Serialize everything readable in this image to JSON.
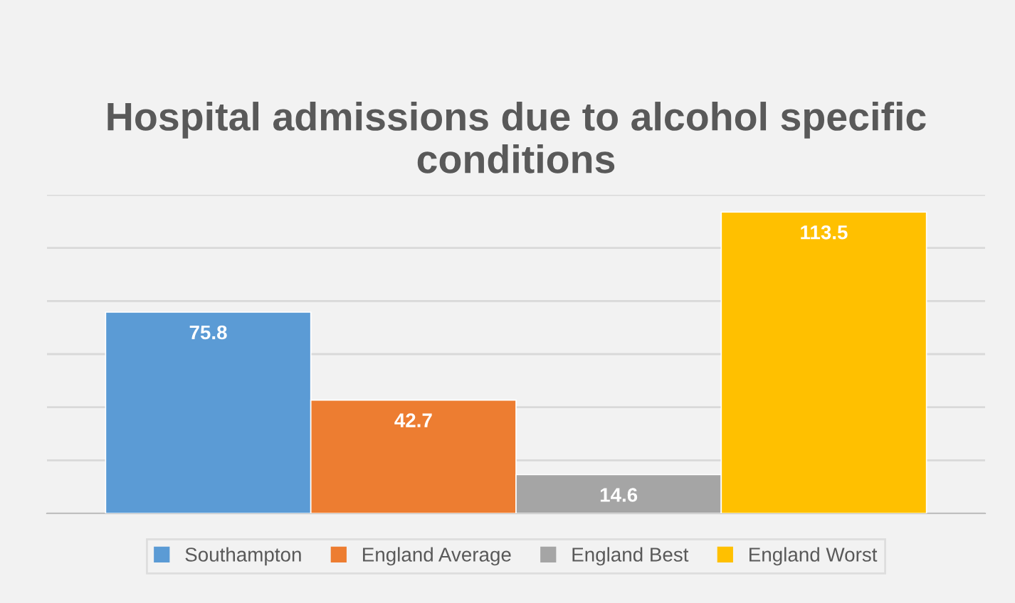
{
  "chart_data": {
    "type": "bar",
    "title": "Hospital admissions due to alcohol specific conditions",
    "categories": [
      null
    ],
    "series": [
      {
        "name": "Southampton",
        "color": "#5b9bd5",
        "values": [
          75.8
        ]
      },
      {
        "name": "England Average",
        "color": "#ed7d31",
        "values": [
          42.7
        ]
      },
      {
        "name": "England Best",
        "color": "#a5a5a5",
        "values": [
          14.6
        ]
      },
      {
        "name": "England Worst",
        "color": "#ffc000",
        "values": [
          113.5
        ]
      }
    ],
    "ylim": [
      0,
      120
    ],
    "yticks": [
      {
        "value": 0,
        "label": null
      },
      {
        "value": 20,
        "label": null
      },
      {
        "value": 40,
        "label": null
      },
      {
        "value": 60,
        "label": null
      },
      {
        "value": 80,
        "label": null
      },
      {
        "value": 100,
        "label": null
      },
      {
        "value": 120,
        "label": null
      }
    ],
    "grid": "y",
    "data_labels": true,
    "legend": "bottom"
  }
}
